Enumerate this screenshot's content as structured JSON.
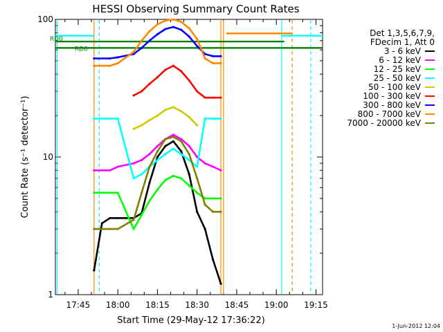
{
  "chart_data": {
    "type": "line",
    "title": "HESSI Observing Summary Count Rates",
    "xlabel": "Start Time (29-May-12 17:36:22)",
    "ylabel": "Count Rate (s⁻¹ detector⁻¹)",
    "x_unit": "UT time (29-May-2012)",
    "xlim": [
      "17:36:22",
      "19:17:30"
    ],
    "ylim": [
      1,
      100
    ],
    "y_scale": "log",
    "x_ticks": [
      "17:45",
      "18:00",
      "18:15",
      "18:30",
      "18:45",
      "19:00",
      "19:15"
    ],
    "y_ticks": [
      "1",
      "10",
      "100"
    ],
    "grid": false,
    "legend_position": "right",
    "legend_header": [
      "Det 1,3,5,6,7,9,",
      "FDecim 1, Att 0"
    ],
    "series": [
      {
        "name": "3 - 6 keV",
        "color": "#000000",
        "x": [
          "17:51",
          "17:54",
          "17:57",
          "18:00",
          "18:03",
          "18:06",
          "18:09",
          "18:12",
          "18:15",
          "18:18",
          "18:21",
          "18:24",
          "18:27",
          "18:30",
          "18:33",
          "18:36",
          "18:39"
        ],
        "y": [
          1.5,
          3.3,
          3.6,
          3.6,
          3.6,
          3.6,
          3.9,
          6.5,
          10.0,
          12.0,
          13.0,
          11.0,
          7.5,
          4.0,
          3.0,
          1.8,
          1.2
        ]
      },
      {
        "name": "6 - 12 keV",
        "color": "#ff00ff",
        "x": [
          "17:51",
          "17:57",
          "18:00",
          "18:06",
          "18:09",
          "18:12",
          "18:15",
          "18:18",
          "18:21",
          "18:24",
          "18:27",
          "18:30",
          "18:33",
          "18:36",
          "18:39"
        ],
        "y": [
          8.0,
          8.0,
          8.5,
          9.0,
          9.5,
          10.5,
          12.0,
          13.5,
          14.5,
          13.5,
          12.0,
          10.0,
          9.0,
          8.5,
          8.0
        ]
      },
      {
        "name": "12 - 25 keV",
        "color": "#00ff00",
        "x": [
          "17:51",
          "17:57",
          "18:00",
          "18:06",
          "18:09",
          "18:12",
          "18:15",
          "18:18",
          "18:21",
          "18:24",
          "18:27",
          "18:30",
          "18:33",
          "18:36",
          "18:39"
        ],
        "y": [
          5.5,
          5.5,
          5.5,
          3.0,
          3.8,
          4.8,
          5.8,
          6.8,
          7.3,
          7.0,
          6.2,
          5.5,
          5.0,
          5.0,
          5.0
        ]
      },
      {
        "name": "25 - 50 keV",
        "color": "#00ffff",
        "x": [
          "17:51",
          "17:57",
          "18:00",
          "18:06",
          "18:09",
          "18:12",
          "18:15",
          "18:18",
          "18:21",
          "18:24",
          "18:27",
          "18:30",
          "18:33",
          "18:36",
          "18:39"
        ],
        "y": [
          19.0,
          19.0,
          19.0,
          7.0,
          7.5,
          8.5,
          9.5,
          10.5,
          11.5,
          10.5,
          9.5,
          8.5,
          19.0,
          19.0,
          19.0
        ]
      },
      {
        "name": "50 - 100 keV",
        "color": "#cccc00",
        "x": [
          "18:06",
          "18:09",
          "18:12",
          "18:15",
          "18:18",
          "18:21",
          "18:24",
          "18:27",
          "18:30"
        ],
        "y": [
          16.0,
          17.0,
          18.5,
          20.0,
          22.0,
          23.0,
          21.5,
          19.5,
          17.0
        ]
      },
      {
        "name": "100 - 300 keV",
        "color": "#ff0000",
        "x": [
          "18:06",
          "18:09",
          "18:12",
          "18:15",
          "18:18",
          "18:21",
          "18:24",
          "18:27",
          "18:30",
          "18:33",
          "18:36",
          "18:39"
        ],
        "y": [
          28.0,
          30.0,
          34.0,
          38.0,
          43.0,
          46.0,
          42.0,
          36.0,
          30.0,
          27.0,
          27.0,
          27.0
        ]
      },
      {
        "name": "300 - 800 keV",
        "color": "#0000ff",
        "x": [
          "17:51",
          "17:57",
          "18:00",
          "18:06",
          "18:09",
          "18:12",
          "18:15",
          "18:18",
          "18:21",
          "18:24",
          "18:27",
          "18:30",
          "18:33",
          "18:36",
          "18:39"
        ],
        "y": [
          52.0,
          52.0,
          53.0,
          56.0,
          62.0,
          70.0,
          78.0,
          85.0,
          88.0,
          84.0,
          75.0,
          64.0,
          56.0,
          54.0,
          54.0
        ]
      },
      {
        "name": "800 - 7000 keV",
        "color": "#ff8800",
        "x": [
          "17:51",
          "17:57",
          "18:00",
          "18:06",
          "18:09",
          "18:12",
          "18:15",
          "18:18",
          "18:21",
          "18:24",
          "18:27",
          "18:30",
          "18:33",
          "18:36",
          "18:39"
        ],
        "y": [
          46.0,
          46.0,
          48.0,
          58.0,
          70.0,
          82.0,
          92.0,
          98.0,
          100.0,
          96.0,
          86.0,
          72.0,
          52.0,
          48.0,
          48.0
        ]
      },
      {
        "name": "7000 - 20000 keV",
        "color": "#808000",
        "x": [
          "17:51",
          "17:57",
          "18:00",
          "18:06",
          "18:09",
          "18:12",
          "18:15",
          "18:18",
          "18:21",
          "18:24",
          "18:27",
          "18:30",
          "18:33",
          "18:36",
          "18:39"
        ],
        "y": [
          3.0,
          3.0,
          3.0,
          3.5,
          5.5,
          8.5,
          11.0,
          13.5,
          14.0,
          13.0,
          10.5,
          7.0,
          4.5,
          4.0,
          4.0
        ]
      }
    ],
    "annotations": [
      {
        "text": "RD0",
        "color": "#008000"
      },
      {
        "text": "RD6",
        "color": "#008000"
      }
    ],
    "level_lines": [
      {
        "name": "RD0",
        "color": "#008000",
        "segments": [
          {
            "x": [
              "17:36:22",
              "17:51"
            ],
            "y": 69.0
          },
          {
            "x": [
              "17:51",
              "19:03"
            ],
            "y": 69.0
          }
        ]
      },
      {
        "name": "RD6",
        "color": "#008000",
        "segments": [
          {
            "x": [
              "17:36:22",
              "18:05"
            ],
            "y": 62.0
          },
          {
            "x": [
              "18:05",
              "19:17:30"
            ],
            "y": 62.0
          }
        ]
      },
      {
        "name": "cyan-level",
        "color": "#00ffff",
        "segments": [
          {
            "x": [
              "17:36:22",
              "17:51"
            ],
            "y": 76.0
          },
          {
            "x": [
              "19:02",
              "19:17:30"
            ],
            "y": 76.0
          }
        ]
      },
      {
        "name": "orange-level",
        "color": "#ff8800",
        "segments": [
          {
            "x": [
              "18:41",
              "19:06"
            ],
            "y": 79.0
          }
        ]
      }
    ],
    "event_lines": [
      {
        "x": "17:37",
        "color": "#00ffff",
        "style": "solid"
      },
      {
        "x": "17:53",
        "color": "#00ffff",
        "style": "dashed"
      },
      {
        "x": "17:51",
        "color": "#ff8800",
        "style": "solid"
      },
      {
        "x": "18:39",
        "color": "#ff8800",
        "style": "solid"
      },
      {
        "x": "18:40",
        "color": "#ff8800",
        "style": "solid"
      },
      {
        "x": "19:02",
        "color": "#00ffff",
        "style": "solid"
      },
      {
        "x": "19:06",
        "color": "#ff8800",
        "style": "dashed"
      },
      {
        "x": "19:13",
        "color": "#00ffff",
        "style": "dashed"
      }
    ],
    "footer_text": "1-Jun-2012 12:04"
  }
}
